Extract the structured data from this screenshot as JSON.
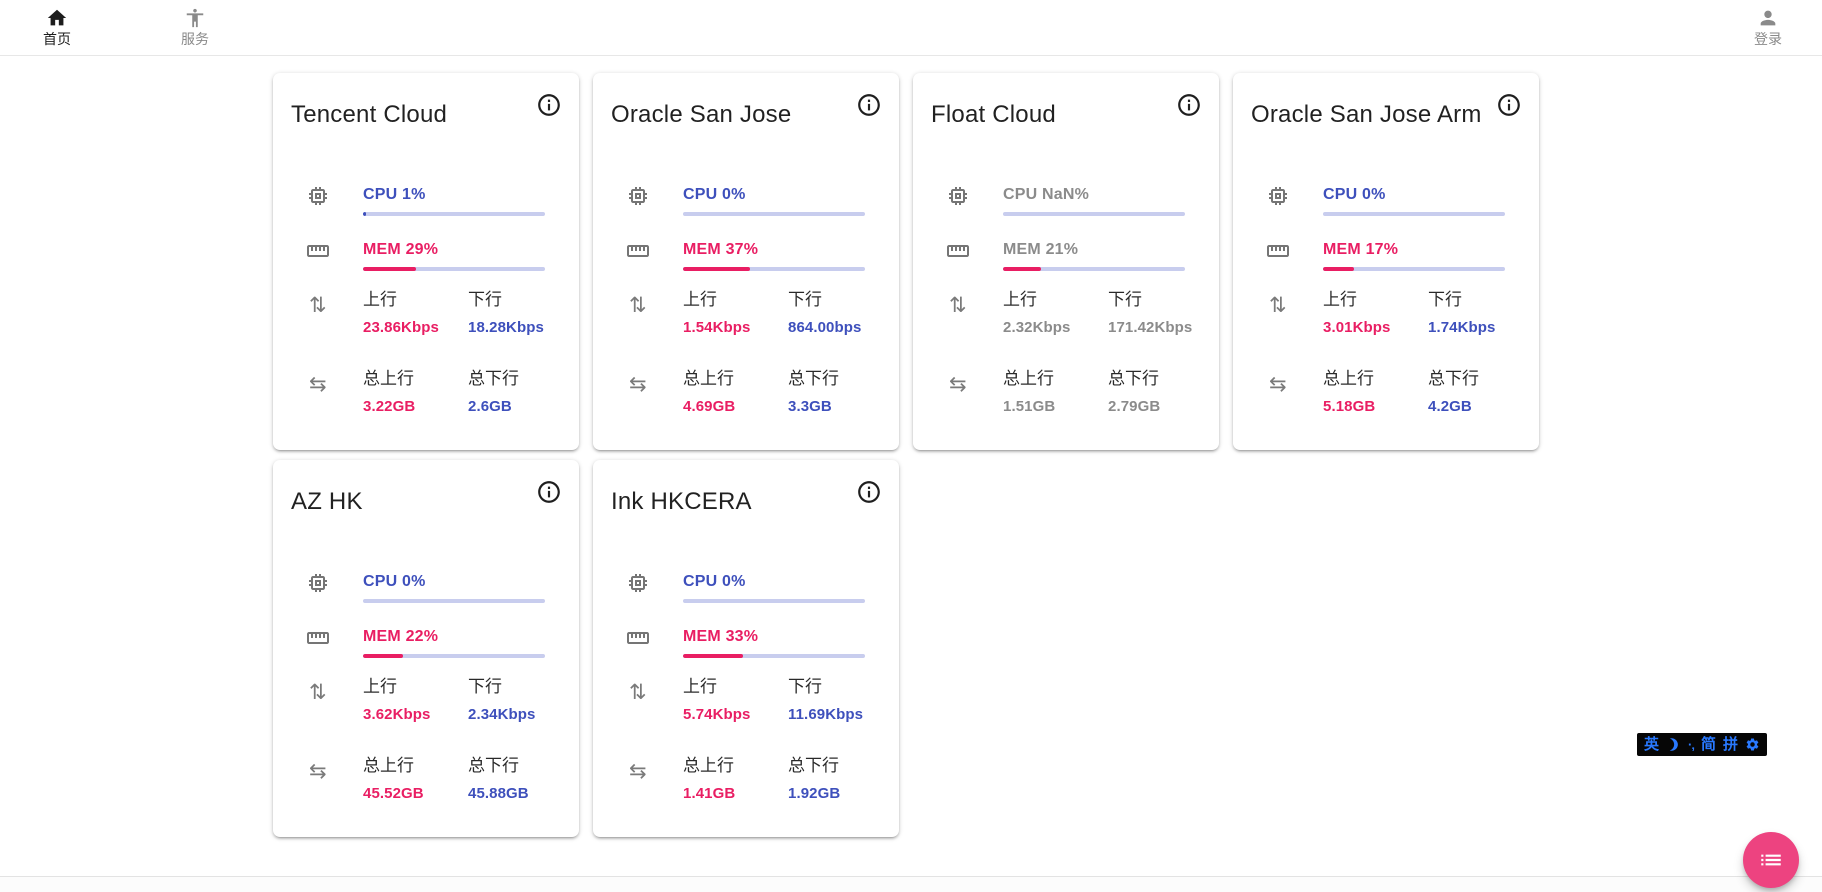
{
  "nav": {
    "items": [
      {
        "label": "首页",
        "icon": "home-icon",
        "active": true
      },
      {
        "label": "服务",
        "icon": "accessibility-icon",
        "active": false
      }
    ],
    "login": {
      "label": "登录",
      "icon": "person-icon"
    }
  },
  "labels": {
    "up": "上行",
    "down": "下行",
    "total_up": "总上行",
    "total_down": "总下行"
  },
  "servers": [
    {
      "name": "Tencent Cloud",
      "cpu_text": "CPU 1%",
      "cpu_pct": 1,
      "mem_text": "MEM 29%",
      "mem_pct": 29,
      "up_value": "23.86Kbps",
      "down_value": "18.28Kbps",
      "total_up_value": "3.22GB",
      "total_down_value": "2.6GB",
      "offline": false
    },
    {
      "name": "Oracle San Jose",
      "cpu_text": "CPU 0%",
      "cpu_pct": 0,
      "mem_text": "MEM 37%",
      "mem_pct": 37,
      "up_value": "1.54Kbps",
      "down_value": "864.00bps",
      "total_up_value": "4.69GB",
      "total_down_value": "3.3GB",
      "offline": false
    },
    {
      "name": "Float Cloud",
      "cpu_text": "CPU NaN%",
      "cpu_pct": 0,
      "mem_text": "MEM 21%",
      "mem_pct": 21,
      "up_value": "2.32Kbps",
      "down_value": "171.42Kbps",
      "total_up_value": "1.51GB",
      "total_down_value": "2.79GB",
      "offline": true
    },
    {
      "name": "Oracle San Jose Arm",
      "cpu_text": "CPU 0%",
      "cpu_pct": 0,
      "mem_text": "MEM 17%",
      "mem_pct": 17,
      "up_value": "3.01Kbps",
      "down_value": "1.74Kbps",
      "total_up_value": "5.18GB",
      "total_down_value": "4.2GB",
      "offline": false
    },
    {
      "name": "AZ HK",
      "cpu_text": "CPU 0%",
      "cpu_pct": 0,
      "mem_text": "MEM 22%",
      "mem_pct": 22,
      "up_value": "3.62Kbps",
      "down_value": "2.34Kbps",
      "total_up_value": "45.52GB",
      "total_down_value": "45.88GB",
      "offline": false
    },
    {
      "name": "Ink HKCERA",
      "cpu_text": "CPU 0%",
      "cpu_pct": 0,
      "mem_text": "MEM 33%",
      "mem_pct": 33,
      "up_value": "5.74Kbps",
      "down_value": "11.69Kbps",
      "total_up_value": "1.41GB",
      "total_down_value": "1.92GB",
      "offline": false
    }
  ],
  "ime_bar": {
    "lang_label": "英",
    "punct_label": "·‚",
    "simplified_label": "简",
    "pinyin_label": "拼",
    "icons": [
      "moon-icon",
      "settings-icon"
    ]
  },
  "fab": {
    "icon": "list-icon"
  },
  "colors": {
    "accent_blue": "#3E50BC",
    "accent_pink": "#E91E63",
    "bar_track": "#C8CDEE",
    "offline_gray": "#8B8B8B",
    "fab_pink": "#ED4380",
    "ime_blue": "#2979FF"
  }
}
